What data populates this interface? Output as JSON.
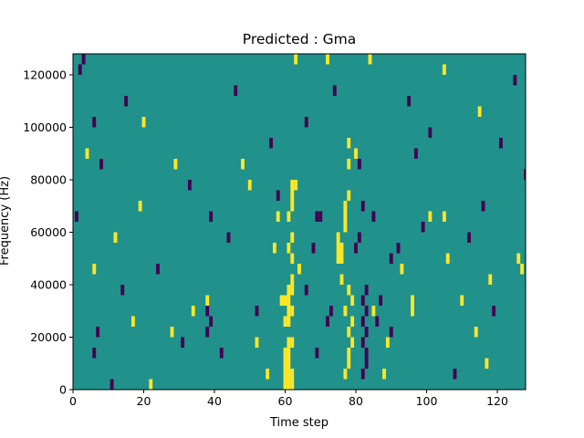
{
  "chart_data": {
    "type": "heatmap",
    "title": "Predicted : Gma",
    "xlabel": "Time step",
    "ylabel": "Frequency (Hz)",
    "xlim": [
      0,
      128
    ],
    "ylim": [
      0,
      128000
    ],
    "x_ticks": [
      0,
      20,
      40,
      60,
      80,
      100,
      120
    ],
    "x_tick_labels": [
      "0",
      "20",
      "40",
      "60",
      "80",
      "100",
      "120"
    ],
    "y_ticks": [
      0,
      20000,
      40000,
      60000,
      80000,
      100000,
      120000
    ],
    "y_tick_labels": [
      "0",
      "20000",
      "40000",
      "60000",
      "80000",
      "100000",
      "120000"
    ],
    "grid": false,
    "legend": "none",
    "colormap": "viridis",
    "value_range": [
      -1,
      1
    ],
    "colors": {
      "background_value_0": "#21918c",
      "high_value_1": "#fde725",
      "low_value_-1": "#440154"
    },
    "bin_width_hz": 4000,
    "cells": [
      {
        "t": 60,
        "f": 0,
        "v": 1
      },
      {
        "t": 61,
        "f": 0,
        "v": 1
      },
      {
        "t": 62,
        "f": 0,
        "v": 1
      },
      {
        "t": 60,
        "f": 4000,
        "v": 1
      },
      {
        "t": 61,
        "f": 4000,
        "v": 1
      },
      {
        "t": 62,
        "f": 4000,
        "v": 1
      },
      {
        "t": 60,
        "f": 8000,
        "v": 1
      },
      {
        "t": 61,
        "f": 8000,
        "v": 1
      },
      {
        "t": 60,
        "f": 12000,
        "v": 1
      },
      {
        "t": 61,
        "f": 12000,
        "v": 1
      },
      {
        "t": 61,
        "f": 16000,
        "v": 1
      },
      {
        "t": 62,
        "f": 16000,
        "v": 1
      },
      {
        "t": 60,
        "f": 24000,
        "v": 1
      },
      {
        "t": 61,
        "f": 24000,
        "v": 1
      },
      {
        "t": 61,
        "f": 28000,
        "v": 1
      },
      {
        "t": 62,
        "f": 28000,
        "v": 1
      },
      {
        "t": 59,
        "f": 32000,
        "v": 1
      },
      {
        "t": 60,
        "f": 32000,
        "v": 1
      },
      {
        "t": 61,
        "f": 32000,
        "v": 1
      },
      {
        "t": 61,
        "f": 36000,
        "v": 1
      },
      {
        "t": 62,
        "f": 36000,
        "v": 1
      },
      {
        "t": 62,
        "f": 40000,
        "v": 1
      },
      {
        "t": 64,
        "f": 44000,
        "v": 1
      },
      {
        "t": 62,
        "f": 48000,
        "v": 1
      },
      {
        "t": 61,
        "f": 52000,
        "v": 1
      },
      {
        "t": 62,
        "f": 56000,
        "v": 1
      },
      {
        "t": 61,
        "f": 64000,
        "v": 1
      },
      {
        "t": 62,
        "f": 68000,
        "v": 1
      },
      {
        "t": 62,
        "f": 72000,
        "v": 1
      },
      {
        "t": 62,
        "f": 76000,
        "v": 1
      },
      {
        "t": 63,
        "f": 76000,
        "v": 1
      },
      {
        "t": 75,
        "f": 48000,
        "v": 1
      },
      {
        "t": 76,
        "f": 48000,
        "v": 1
      },
      {
        "t": 75,
        "f": 52000,
        "v": 1
      },
      {
        "t": 76,
        "f": 52000,
        "v": 1
      },
      {
        "t": 75,
        "f": 56000,
        "v": 1
      },
      {
        "t": 77,
        "f": 60000,
        "v": 1
      },
      {
        "t": 77,
        "f": 64000,
        "v": 1
      },
      {
        "t": 77,
        "f": 68000,
        "v": 1
      },
      {
        "t": 78,
        "f": 72000,
        "v": 1
      },
      {
        "t": 77,
        "f": 4000,
        "v": 1
      },
      {
        "t": 78,
        "f": 8000,
        "v": 1
      },
      {
        "t": 78,
        "f": 12000,
        "v": 1
      },
      {
        "t": 79,
        "f": 16000,
        "v": 1
      },
      {
        "t": 78,
        "f": 20000,
        "v": 1
      },
      {
        "t": 79,
        "f": 24000,
        "v": 1
      },
      {
        "t": 77,
        "f": 28000,
        "v": 1
      },
      {
        "t": 79,
        "f": 32000,
        "v": 1
      },
      {
        "t": 78,
        "f": 36000,
        "v": 1
      },
      {
        "t": 76,
        "f": 40000,
        "v": 1
      },
      {
        "t": 78,
        "f": 84000,
        "v": 1
      },
      {
        "t": 80,
        "f": 88000,
        "v": 1
      },
      {
        "t": 78,
        "f": 92000,
        "v": 1
      },
      {
        "t": 88,
        "f": 4000,
        "v": 1
      },
      {
        "t": 89,
        "f": 16000,
        "v": 1
      },
      {
        "t": 85,
        "f": 28000,
        "v": 1
      },
      {
        "t": 93,
        "f": 44000,
        "v": 1
      },
      {
        "t": 96,
        "f": 28000,
        "v": 1
      },
      {
        "t": 96,
        "f": 32000,
        "v": 1
      },
      {
        "t": 55,
        "f": 4000,
        "v": 1
      },
      {
        "t": 52,
        "f": 16000,
        "v": 1
      },
      {
        "t": 34,
        "f": 28000,
        "v": 1
      },
      {
        "t": 57,
        "f": 52000,
        "v": 1
      },
      {
        "t": 58,
        "f": 64000,
        "v": 1
      },
      {
        "t": 63,
        "f": 124000,
        "v": 1
      },
      {
        "t": 72,
        "f": 124000,
        "v": 1
      },
      {
        "t": 84,
        "f": 124000,
        "v": 1
      },
      {
        "t": 105,
        "f": 120000,
        "v": 1
      },
      {
        "t": 115,
        "f": 104000,
        "v": 1
      },
      {
        "t": 127,
        "f": 44000,
        "v": 1
      },
      {
        "t": 126,
        "f": 48000,
        "v": 1
      },
      {
        "t": 101,
        "f": 64000,
        "v": 1
      },
      {
        "t": 105,
        "f": 64000,
        "v": 1
      },
      {
        "t": 22,
        "f": 0,
        "v": 1
      },
      {
        "t": 28,
        "f": 20000,
        "v": 1
      },
      {
        "t": 17,
        "f": 24000,
        "v": 1
      },
      {
        "t": 12,
        "f": 56000,
        "v": 1
      },
      {
        "t": 19,
        "f": 68000,
        "v": 1
      },
      {
        "t": 6,
        "f": 44000,
        "v": 1
      },
      {
        "t": 4,
        "f": 88000,
        "v": 1
      },
      {
        "t": 20,
        "f": 100000,
        "v": 1
      },
      {
        "t": 29,
        "f": 84000,
        "v": 1
      },
      {
        "t": 50,
        "f": 76000,
        "v": 1
      },
      {
        "t": 48,
        "f": 84000,
        "v": 1
      },
      {
        "t": 38,
        "f": 32000,
        "v": 1
      },
      {
        "t": 106,
        "f": 48000,
        "v": 1
      },
      {
        "t": 110,
        "f": 32000,
        "v": 1
      },
      {
        "t": 117,
        "f": 8000,
        "v": 1
      },
      {
        "t": 114,
        "f": 20000,
        "v": 1
      },
      {
        "t": 118,
        "f": 40000,
        "v": 1
      },
      {
        "t": 82,
        "f": 4000,
        "v": -1
      },
      {
        "t": 83,
        "f": 8000,
        "v": -1
      },
      {
        "t": 83,
        "f": 12000,
        "v": -1
      },
      {
        "t": 82,
        "f": 16000,
        "v": -1
      },
      {
        "t": 83,
        "f": 20000,
        "v": -1
      },
      {
        "t": 82,
        "f": 24000,
        "v": -1
      },
      {
        "t": 83,
        "f": 28000,
        "v": -1
      },
      {
        "t": 82,
        "f": 32000,
        "v": -1
      },
      {
        "t": 83,
        "f": 36000,
        "v": -1
      },
      {
        "t": 80,
        "f": 52000,
        "v": -1
      },
      {
        "t": 81,
        "f": 56000,
        "v": -1
      },
      {
        "t": 82,
        "f": 68000,
        "v": -1
      },
      {
        "t": 81,
        "f": 84000,
        "v": -1
      },
      {
        "t": 69,
        "f": 64000,
        "v": -1
      },
      {
        "t": 70,
        "f": 64000,
        "v": -1
      },
      {
        "t": 69,
        "f": 12000,
        "v": -1
      },
      {
        "t": 73,
        "f": 28000,
        "v": -1
      },
      {
        "t": 72,
        "f": 24000,
        "v": -1
      },
      {
        "t": 68,
        "f": 52000,
        "v": -1
      },
      {
        "t": 66,
        "f": 36000,
        "v": -1
      },
      {
        "t": 39,
        "f": 24000,
        "v": -1
      },
      {
        "t": 38,
        "f": 28000,
        "v": -1
      },
      {
        "t": 1,
        "f": 64000,
        "v": -1
      },
      {
        "t": 7,
        "f": 20000,
        "v": -1
      },
      {
        "t": 6,
        "f": 12000,
        "v": -1
      },
      {
        "t": 39,
        "f": 64000,
        "v": -1
      },
      {
        "t": 87,
        "f": 32000,
        "v": -1
      },
      {
        "t": 86,
        "f": 24000,
        "v": -1
      },
      {
        "t": 90,
        "f": 20000,
        "v": -1
      },
      {
        "t": 97,
        "f": 88000,
        "v": -1
      },
      {
        "t": 6,
        "f": 100000,
        "v": -1
      },
      {
        "t": 3,
        "f": 124000,
        "v": -1
      },
      {
        "t": 38,
        "f": 20000,
        "v": -1
      },
      {
        "t": 42,
        "f": 12000,
        "v": -1
      },
      {
        "t": 85,
        "f": 64000,
        "v": -1
      },
      {
        "t": 92,
        "f": 52000,
        "v": -1
      },
      {
        "t": 56,
        "f": 92000,
        "v": -1
      },
      {
        "t": 128,
        "f": 80000,
        "v": -1
      },
      {
        "t": 2,
        "f": 120000,
        "v": -1
      },
      {
        "t": 11,
        "f": 0,
        "v": -1
      },
      {
        "t": 14,
        "f": 36000,
        "v": -1
      },
      {
        "t": 24,
        "f": 44000,
        "v": -1
      },
      {
        "t": 31,
        "f": 16000,
        "v": -1
      },
      {
        "t": 44,
        "f": 56000,
        "v": -1
      },
      {
        "t": 52,
        "f": 28000,
        "v": -1
      },
      {
        "t": 58,
        "f": 72000,
        "v": -1
      },
      {
        "t": 66,
        "f": 100000,
        "v": -1
      },
      {
        "t": 74,
        "f": 112000,
        "v": -1
      },
      {
        "t": 90,
        "f": 48000,
        "v": -1
      },
      {
        "t": 99,
        "f": 60000,
        "v": -1
      },
      {
        "t": 108,
        "f": 4000,
        "v": -1
      },
      {
        "t": 112,
        "f": 56000,
        "v": -1
      },
      {
        "t": 121,
        "f": 92000,
        "v": -1
      },
      {
        "t": 125,
        "f": 116000,
        "v": -1
      },
      {
        "t": 15,
        "f": 108000,
        "v": -1
      },
      {
        "t": 33,
        "f": 76000,
        "v": -1
      },
      {
        "t": 46,
        "f": 112000,
        "v": -1
      },
      {
        "t": 95,
        "f": 108000,
        "v": -1
      },
      {
        "t": 101,
        "f": 96000,
        "v": -1
      },
      {
        "t": 116,
        "f": 68000,
        "v": -1
      },
      {
        "t": 119,
        "f": 28000,
        "v": -1
      },
      {
        "t": 8,
        "f": 84000,
        "v": -1
      }
    ]
  }
}
